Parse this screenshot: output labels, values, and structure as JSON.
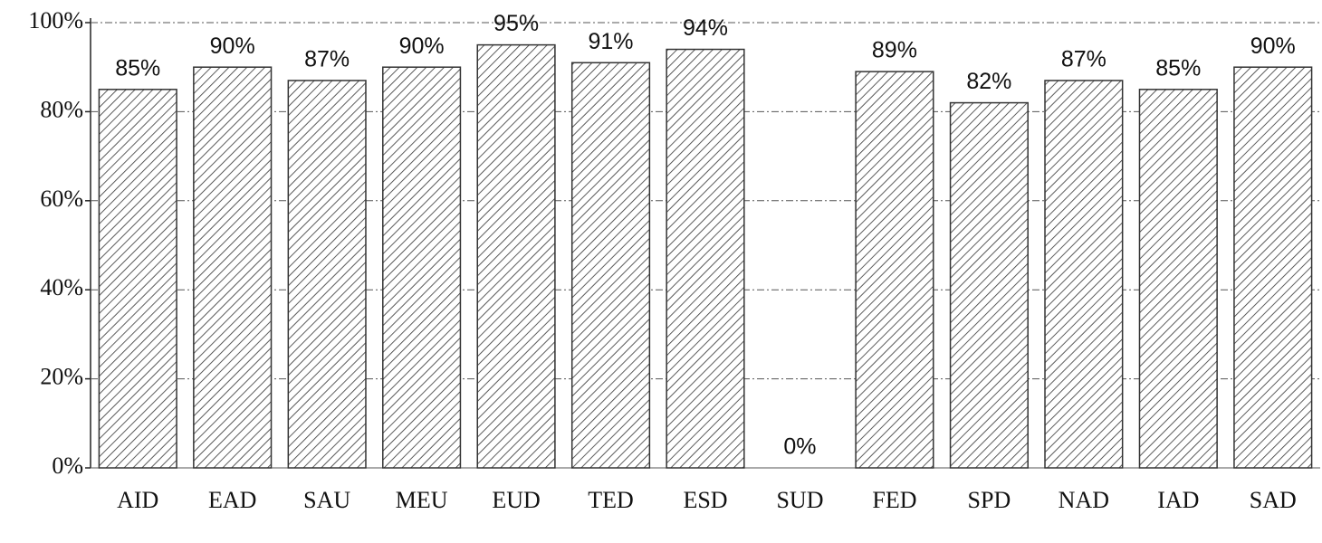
{
  "chart_data": {
    "type": "bar",
    "categories": [
      "AID",
      "EAD",
      "SAU",
      "MEU",
      "EUD",
      "TED",
      "ESD",
      "SUD",
      "FED",
      "SPD",
      "NAD",
      "IAD",
      "SAD"
    ],
    "values": [
      85,
      90,
      87,
      90,
      95,
      91,
      94,
      0,
      89,
      82,
      87,
      85,
      90
    ],
    "value_labels": [
      "85%",
      "90%",
      "87%",
      "90%",
      "95%",
      "91%",
      "94%",
      "0%",
      "89%",
      "82%",
      "87%",
      "85%",
      "90%"
    ],
    "color": "#333333",
    "ylim": [
      0,
      100
    ],
    "yticks": [
      {
        "value": 0,
        "label": "0%"
      },
      {
        "value": 20,
        "label": "20%"
      },
      {
        "value": 40,
        "label": "40%"
      },
      {
        "value": 60,
        "label": "60%"
      },
      {
        "value": 80,
        "label": "80%"
      },
      {
        "value": 100,
        "label": "100%"
      }
    ],
    "grid": true
  }
}
